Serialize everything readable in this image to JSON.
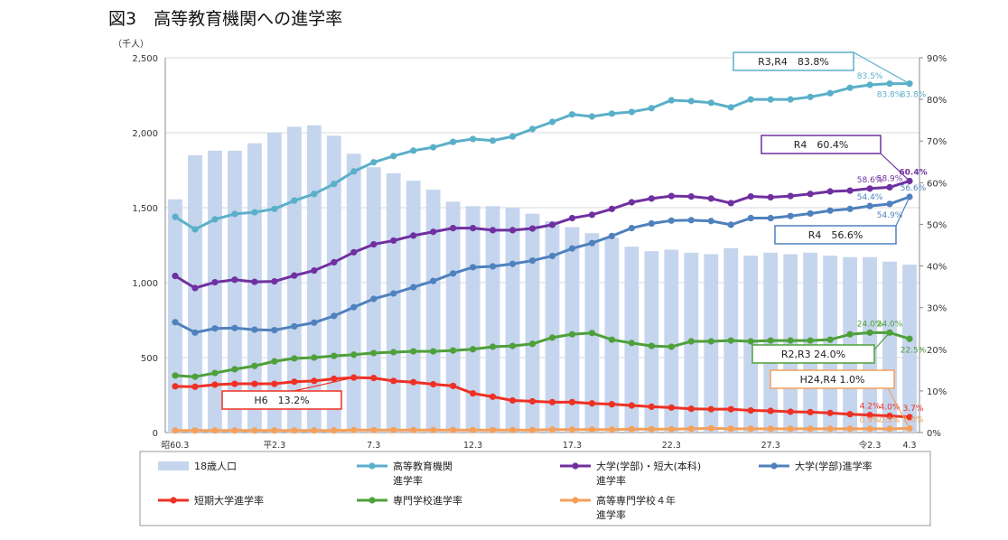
{
  "chart_data": {
    "type": "bar+line",
    "title": "図3　高等教育機関への進学率",
    "y_left_unit": "（千人）",
    "y_left": {
      "range": [
        0,
        2500
      ],
      "ticks": [
        "0",
        "500",
        "1,000",
        "1,500",
        "2,000",
        "2,500"
      ]
    },
    "y_right": {
      "range": [
        0,
        90
      ],
      "ticks": [
        "0%",
        "10%",
        "20%",
        "30%",
        "40%",
        "50%",
        "60%",
        "70%",
        "80%",
        "90%"
      ]
    },
    "x_tick_labels": [
      {
        "i": 0,
        "label": "昭60.3"
      },
      {
        "i": 5,
        "label": "平2.3"
      },
      {
        "i": 10,
        "label": "7.3"
      },
      {
        "i": 15,
        "label": "12.3"
      },
      {
        "i": 20,
        "label": "17.3"
      },
      {
        "i": 25,
        "label": "22.3"
      },
      {
        "i": 30,
        "label": "27.3"
      },
      {
        "i": 35,
        "label": "令2.3"
      },
      {
        "i": 37,
        "label": "4.3"
      }
    ],
    "grid": "horizontal",
    "legend_position": "bottom",
    "bar_series": {
      "name": "18歳人口",
      "color": "#c5d5ee",
      "values": [
        1556,
        1850,
        1880,
        1880,
        1930,
        2000,
        2040,
        2050,
        1980,
        1860,
        1770,
        1730,
        1680,
        1620,
        1540,
        1510,
        1510,
        1500,
        1460,
        1410,
        1370,
        1330,
        1300,
        1240,
        1210,
        1220,
        1200,
        1190,
        1230,
        1180,
        1200,
        1190,
        1200,
        1180,
        1170,
        1170,
        1140,
        1120
      ]
    },
    "series": [
      {
        "name": "高等教育機関\n進学率",
        "color": "#5aafc9",
        "values": [
          51.8,
          48.8,
          51.2,
          52.5,
          52.9,
          53.7,
          55.7,
          57.3,
          59.7,
          62.7,
          64.9,
          66.4,
          67.7,
          68.5,
          69.8,
          70.5,
          70.1,
          71.1,
          72.9,
          74.6,
          76.4,
          75.9,
          76.6,
          77.0,
          77.9,
          79.8,
          79.6,
          79.2,
          78.1,
          80.0,
          80.0,
          80.0,
          80.6,
          81.5,
          82.8,
          83.5,
          83.8,
          83.8
        ],
        "labels": [
          {
            "i": 35,
            "text": "83.5%",
            "pos": "above"
          },
          {
            "i": 36,
            "text": "83.8%",
            "pos": "below"
          },
          {
            "i": 37,
            "text": "83.8%",
            "pos": "below"
          }
        ],
        "callout": "R3,R4　83.8%"
      },
      {
        "name": "大学(学部)・短大(本科)\n進学率",
        "color": "#7030a0",
        "values": [
          37.6,
          34.7,
          36.1,
          36.7,
          36.2,
          36.3,
          37.7,
          38.9,
          40.9,
          43.3,
          45.2,
          46.1,
          47.3,
          48.2,
          49.1,
          49.1,
          48.6,
          48.6,
          49.0,
          49.9,
          51.5,
          52.3,
          53.7,
          55.3,
          56.2,
          56.8,
          56.7,
          56.2,
          55.1,
          56.7,
          56.5,
          56.8,
          57.3,
          57.9,
          58.1,
          58.6,
          58.9,
          60.4
        ],
        "labels": [
          {
            "i": 35,
            "text": "58.6%",
            "pos": "above"
          },
          {
            "i": 36,
            "text": "58.9%",
            "pos": "above"
          },
          {
            "i": 37,
            "text": "60.4%",
            "pos": "above"
          }
        ],
        "callout": "R4　60.4%"
      },
      {
        "name": "大学(学部)進学率",
        "color": "#4f81bd",
        "values": [
          26.5,
          24.0,
          25.0,
          25.1,
          24.7,
          24.6,
          25.5,
          26.4,
          28.0,
          30.1,
          32.1,
          33.4,
          34.9,
          36.4,
          38.2,
          39.7,
          39.9,
          40.5,
          41.3,
          42.4,
          44.2,
          45.5,
          47.2,
          49.1,
          50.2,
          50.9,
          51.0,
          50.8,
          49.9,
          51.5,
          51.5,
          52.0,
          52.6,
          53.3,
          53.7,
          54.4,
          54.9,
          56.6
        ],
        "labels": [
          {
            "i": 35,
            "text": "54.4%",
            "pos": "above"
          },
          {
            "i": 36,
            "text": "54.9%",
            "pos": "below"
          },
          {
            "i": 37,
            "text": "56.6%",
            "pos": "above"
          }
        ],
        "callout": "R4　56.6%"
      },
      {
        "name": "短期大学進学率",
        "color": "#ee3124",
        "values": [
          11.1,
          11.0,
          11.5,
          11.7,
          11.7,
          11.7,
          12.2,
          12.4,
          12.9,
          13.2,
          13.1,
          12.4,
          12.1,
          11.6,
          11.2,
          9.4,
          8.6,
          7.7,
          7.5,
          7.3,
          7.3,
          7.0,
          6.8,
          6.5,
          6.2,
          6.0,
          5.7,
          5.6,
          5.6,
          5.3,
          5.2,
          5.0,
          4.9,
          4.7,
          4.4,
          4.2,
          4.0,
          3.7
        ],
        "labels": [
          {
            "i": 35,
            "text": "4.2%",
            "pos": "above"
          },
          {
            "i": 36,
            "text": "4.0%",
            "pos": "above"
          },
          {
            "i": 37,
            "text": "3.7%",
            "pos": "above"
          }
        ],
        "callout": "H6　13.2%"
      },
      {
        "name": "専門学校進学率",
        "color": "#4ea03a",
        "values": [
          13.7,
          13.4,
          14.3,
          15.2,
          16.0,
          17.1,
          17.8,
          18.0,
          18.4,
          18.7,
          19.1,
          19.3,
          19.5,
          19.5,
          19.7,
          20.0,
          20.6,
          20.8,
          21.3,
          22.8,
          23.6,
          23.9,
          22.3,
          21.5,
          20.8,
          20.6,
          21.9,
          21.9,
          22.1,
          21.9,
          22.1,
          22.1,
          22.1,
          22.3,
          23.6,
          24.0,
          24.0,
          22.5
        ],
        "labels": [
          {
            "i": 35,
            "text": "24.0%",
            "pos": "above"
          },
          {
            "i": 36,
            "text": "24.0%",
            "pos": "above"
          },
          {
            "i": 37,
            "text": "22.5%",
            "pos": "below"
          }
        ],
        "callout": "R2,R3 24.0%"
      },
      {
        "name": "高等専門学校４年\n進学率",
        "color": "#f5a05a",
        "values": [
          0.5,
          0.5,
          0.5,
          0.5,
          0.5,
          0.5,
          0.5,
          0.5,
          0.5,
          0.6,
          0.6,
          0.6,
          0.6,
          0.6,
          0.6,
          0.6,
          0.6,
          0.6,
          0.6,
          0.7,
          0.7,
          0.7,
          0.7,
          0.8,
          0.8,
          0.8,
          0.9,
          1.0,
          0.9,
          0.9,
          0.9,
          0.9,
          0.9,
          0.9,
          0.9,
          0.9,
          0.9,
          1.0
        ],
        "labels": [
          {
            "i": 35,
            "text": "0.9%",
            "pos": "above"
          },
          {
            "i": 36,
            "text": "0.9%",
            "pos": "above"
          },
          {
            "i": 37,
            "text": "1.0%",
            "pos": "above"
          }
        ],
        "callout": "H24,R4 1.0%"
      }
    ]
  }
}
